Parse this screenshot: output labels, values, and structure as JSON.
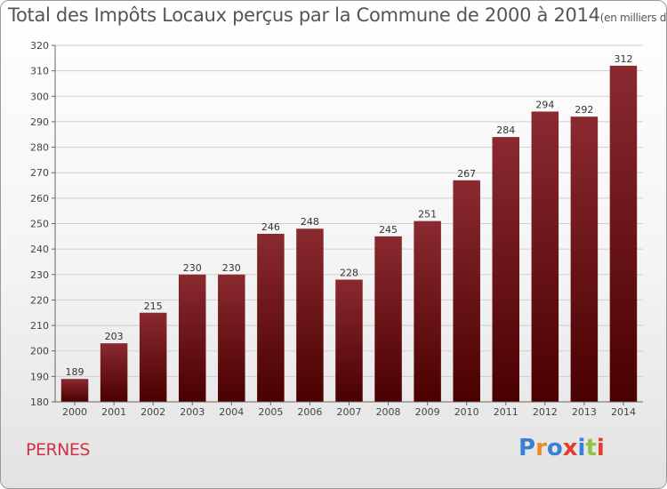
{
  "header": {
    "title": "Total des Impôts Locaux perçus par la Commune de 2000 à 2014",
    "unit": "(en milliers d'€)"
  },
  "footer": {
    "commune": "PERNES",
    "brand": "Proxiti"
  },
  "colors": {
    "bar_top": "#8a2a30",
    "bar_bottom": "#4a0000",
    "grid": "#cfcfcf",
    "commune": "#cc3344",
    "brand": [
      "#3a7fd6",
      "#f08a1e",
      "#3a7fd6",
      "#e63b2e",
      "#3a7fd6",
      "#8cc63f",
      "#e63b2e"
    ]
  },
  "chart_data": {
    "type": "bar",
    "categories": [
      "2000",
      "2001",
      "2002",
      "2003",
      "2004",
      "2005",
      "2006",
      "2007",
      "2008",
      "2009",
      "2010",
      "2011",
      "2012",
      "2013",
      "2014"
    ],
    "values": [
      189,
      203,
      215,
      230,
      230,
      246,
      248,
      228,
      245,
      251,
      267,
      284,
      294,
      292,
      312
    ],
    "yticks": [
      180,
      190,
      200,
      210,
      220,
      230,
      240,
      250,
      260,
      270,
      280,
      290,
      300,
      310,
      320
    ],
    "ylim": [
      180,
      320
    ],
    "grid": true,
    "legend": "none"
  }
}
